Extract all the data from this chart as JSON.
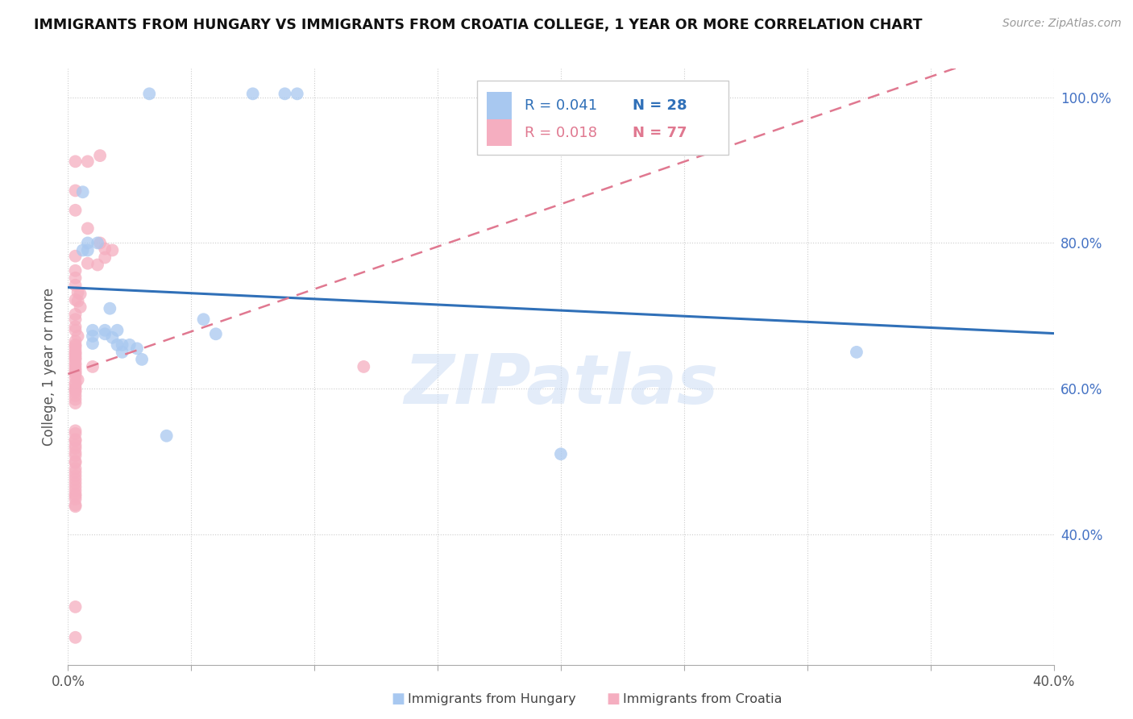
{
  "title": "IMMIGRANTS FROM HUNGARY VS IMMIGRANTS FROM CROATIA COLLEGE, 1 YEAR OR MORE CORRELATION CHART",
  "source": "Source: ZipAtlas.com",
  "ylabel": "College, 1 year or more",
  "xlim": [
    0.0,
    0.4
  ],
  "ylim": [
    0.22,
    1.04
  ],
  "watermark": "ZIPatlas",
  "legend_hungary_r": "R = 0.041",
  "legend_hungary_n": "N = 28",
  "legend_croatia_r": "R = 0.018",
  "legend_croatia_n": "N = 77",
  "hungary_color": "#a8c8f0",
  "croatia_color": "#f5aec0",
  "hungary_line_color": "#3070b8",
  "croatia_line_color": "#e07890",
  "hungary_scatter_x": [
    0.033,
    0.075,
    0.088,
    0.093,
    0.006,
    0.006,
    0.008,
    0.008,
    0.01,
    0.01,
    0.01,
    0.012,
    0.015,
    0.015,
    0.017,
    0.018,
    0.02,
    0.02,
    0.022,
    0.022,
    0.025,
    0.028,
    0.03,
    0.055,
    0.06,
    0.32,
    0.04,
    0.2
  ],
  "hungary_scatter_y": [
    1.005,
    1.005,
    1.005,
    1.005,
    0.87,
    0.79,
    0.79,
    0.8,
    0.68,
    0.672,
    0.662,
    0.8,
    0.68,
    0.675,
    0.71,
    0.67,
    0.66,
    0.68,
    0.66,
    0.65,
    0.66,
    0.655,
    0.64,
    0.695,
    0.675,
    0.65,
    0.535,
    0.51
  ],
  "croatia_scatter_x": [
    0.003,
    0.008,
    0.013,
    0.003,
    0.003,
    0.008,
    0.013,
    0.015,
    0.018,
    0.003,
    0.008,
    0.012,
    0.015,
    0.003,
    0.003,
    0.003,
    0.004,
    0.005,
    0.003,
    0.004,
    0.005,
    0.003,
    0.003,
    0.003,
    0.003,
    0.004,
    0.003,
    0.003,
    0.003,
    0.003,
    0.003,
    0.003,
    0.003,
    0.003,
    0.003,
    0.003,
    0.003,
    0.003,
    0.003,
    0.003,
    0.003,
    0.003,
    0.004,
    0.003,
    0.003,
    0.003,
    0.003,
    0.01,
    0.003,
    0.12,
    0.003,
    0.003,
    0.003,
    0.003,
    0.003,
    0.003,
    0.003,
    0.003,
    0.003,
    0.003,
    0.003,
    0.003,
    0.003,
    0.003,
    0.003,
    0.003,
    0.003,
    0.003,
    0.003,
    0.003,
    0.003,
    0.003,
    0.003,
    0.003,
    0.003,
    0.003,
    0.003
  ],
  "croatia_scatter_y": [
    0.912,
    0.912,
    0.92,
    0.872,
    0.845,
    0.82,
    0.8,
    0.792,
    0.79,
    0.782,
    0.772,
    0.77,
    0.78,
    0.762,
    0.752,
    0.742,
    0.732,
    0.73,
    0.722,
    0.72,
    0.712,
    0.702,
    0.695,
    0.685,
    0.68,
    0.672,
    0.665,
    0.66,
    0.658,
    0.654,
    0.65,
    0.648,
    0.645,
    0.642,
    0.64,
    0.635,
    0.632,
    0.628,
    0.625,
    0.622,
    0.62,
    0.615,
    0.612,
    0.608,
    0.605,
    0.6,
    0.598,
    0.63,
    0.595,
    0.63,
    0.59,
    0.585,
    0.58,
    0.542,
    0.538,
    0.53,
    0.528,
    0.522,
    0.518,
    0.512,
    0.508,
    0.5,
    0.498,
    0.49,
    0.485,
    0.48,
    0.475,
    0.47,
    0.465,
    0.46,
    0.455,
    0.452,
    0.448,
    0.44,
    0.438,
    0.3,
    0.258
  ]
}
